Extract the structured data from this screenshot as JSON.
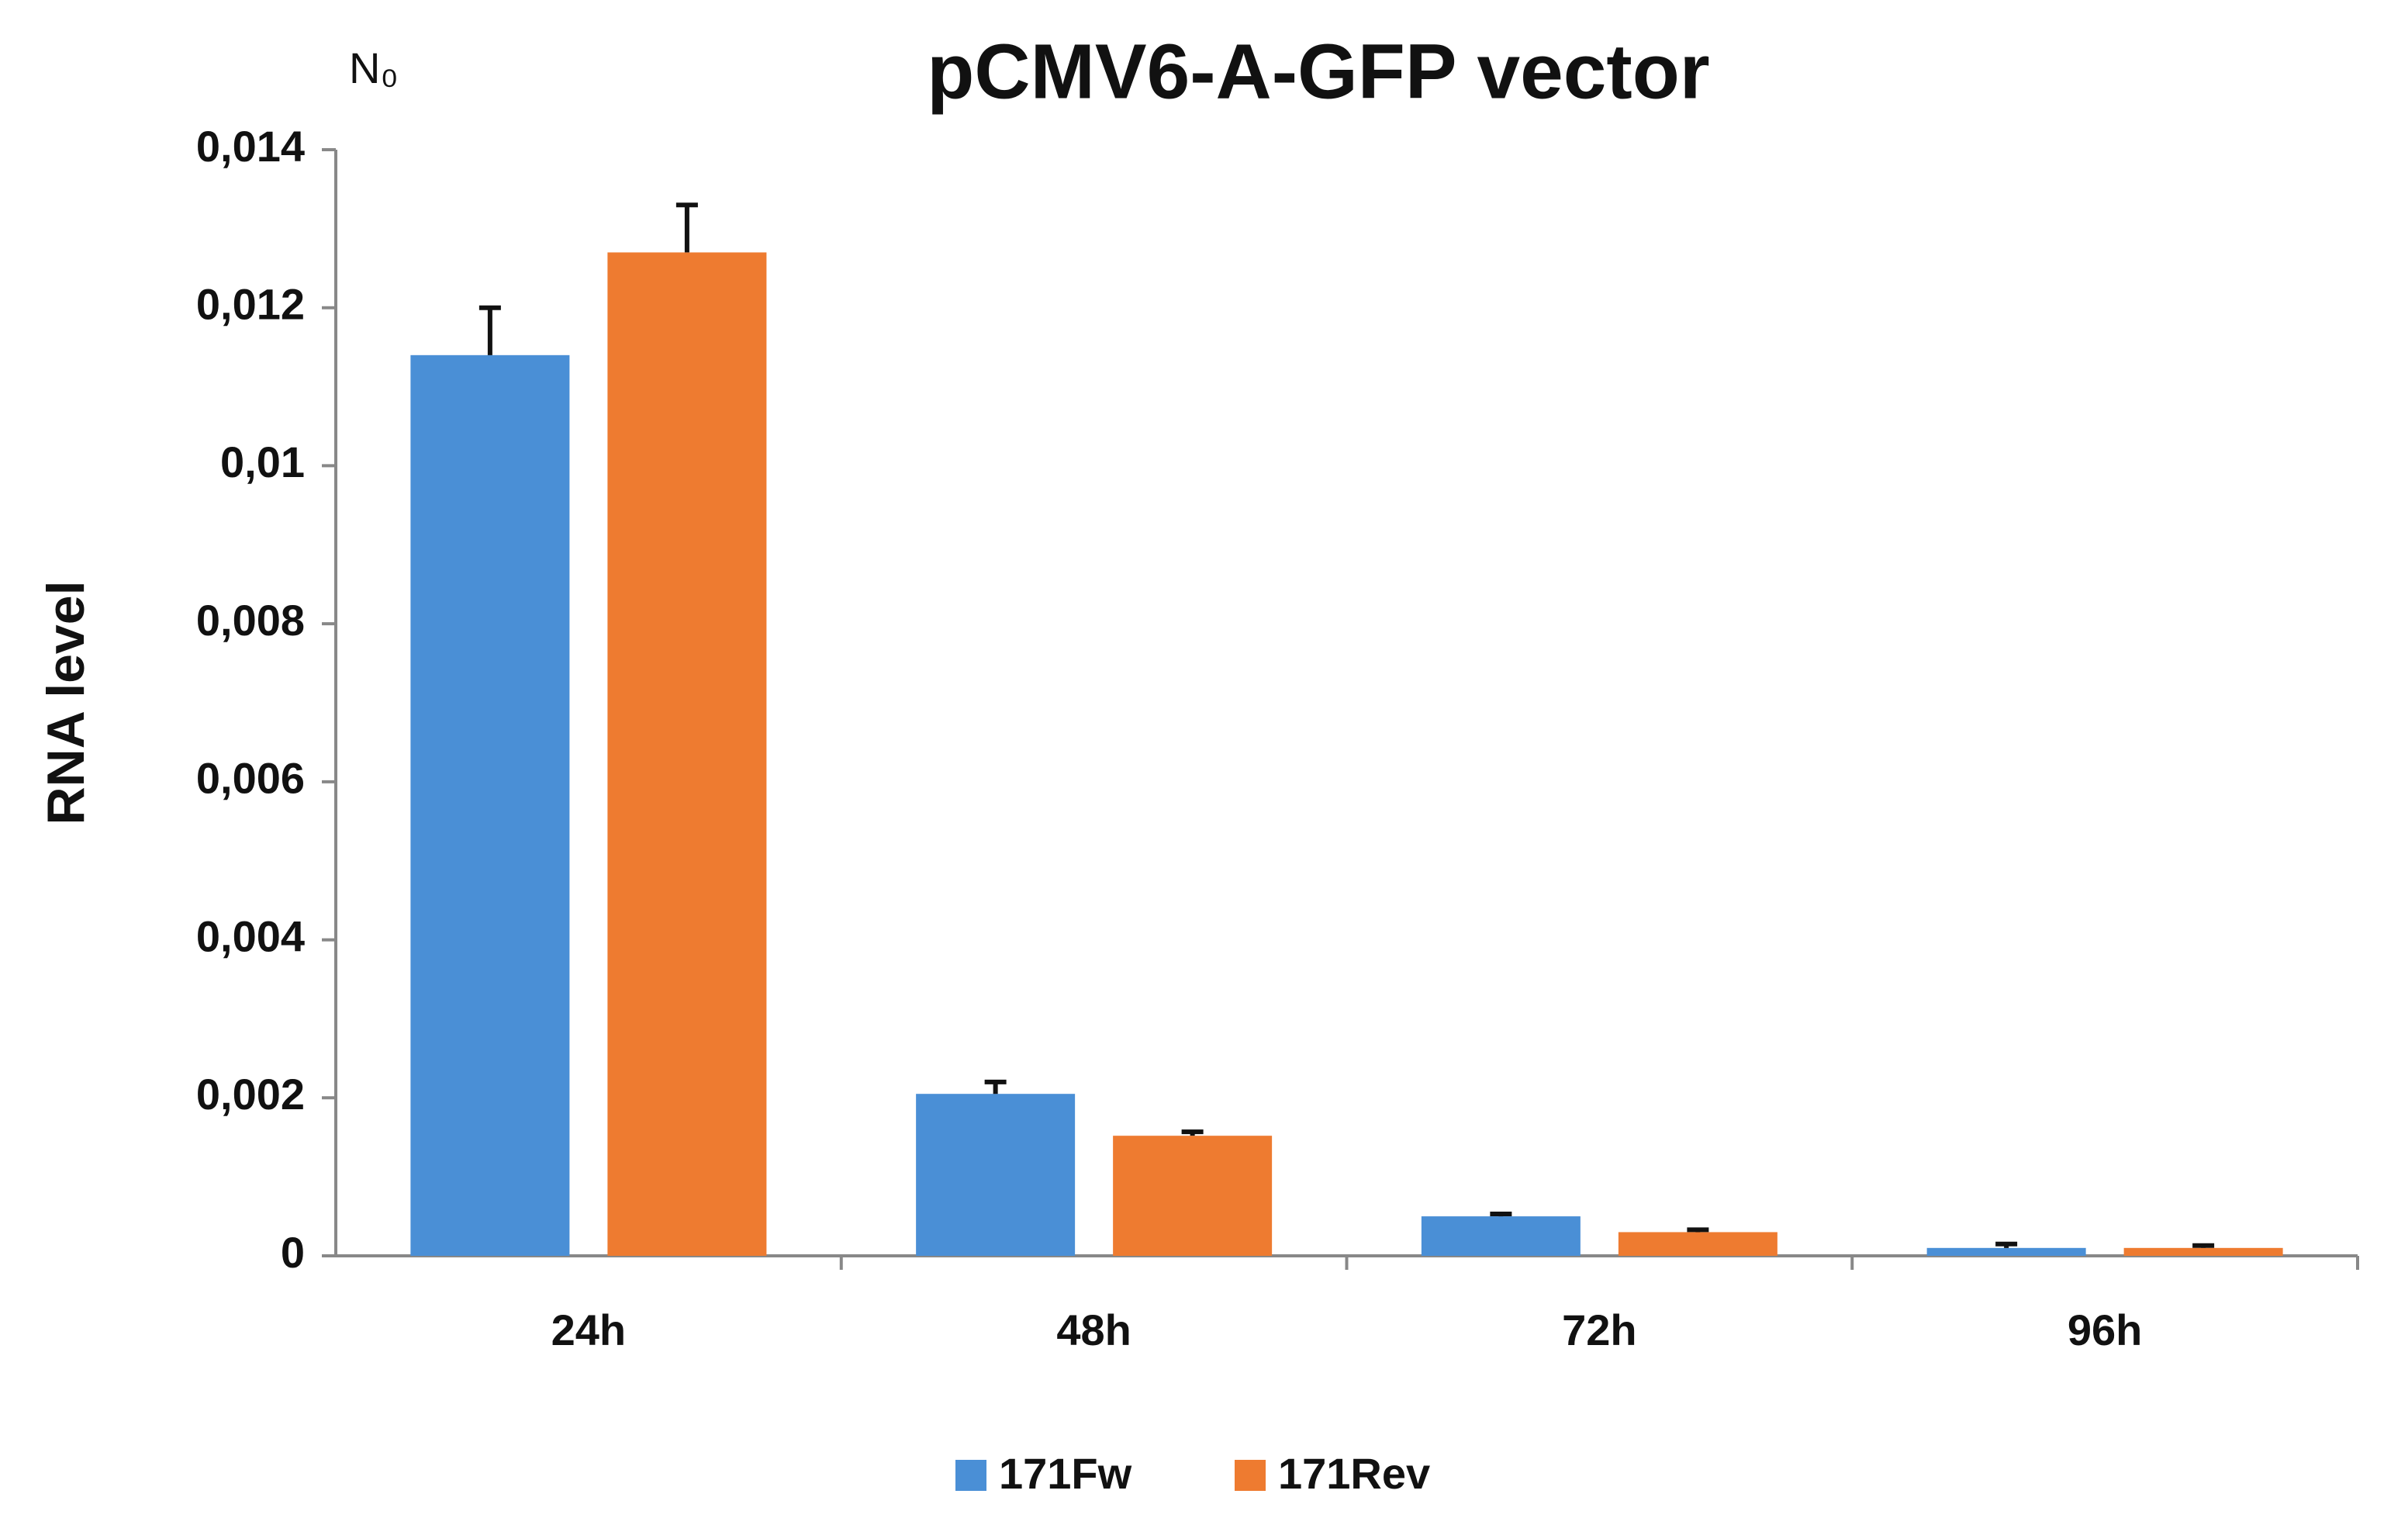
{
  "chart_data": {
    "type": "bar",
    "title": "pCMV6-A-GFP vector",
    "annotation": "N₀",
    "y_label": "RNA level",
    "categories": [
      "24h",
      "48h",
      "72h",
      "96h"
    ],
    "series": [
      {
        "name": "171Fw",
        "color": "#4a8fd6",
        "values": [
          0.0114,
          0.00205,
          0.0005,
          0.0001
        ],
        "errors": [
          0.0006,
          0.00015,
          3e-05,
          5e-05
        ]
      },
      {
        "name": "171Rev",
        "color": "#ee7b30",
        "values": [
          0.0127,
          0.00152,
          0.0003,
          0.0001
        ],
        "errors": [
          0.0006,
          5e-05,
          3e-05,
          3e-05
        ]
      }
    ],
    "ylim": [
      0,
      0.014
    ],
    "yticks": [
      0,
      {
        "value": 0.002,
        "label": "0,002"
      },
      {
        "value": 0.004,
        "label": "0,004"
      },
      {
        "value": 0.006,
        "label": "0,006"
      },
      {
        "value": 0.008,
        "label": "0,008"
      },
      {
        "value": 0.01,
        "label": "0,01"
      },
      {
        "value": 0.012,
        "label": "0,012"
      },
      {
        "value": 0.014,
        "label": "0,014"
      }
    ],
    "grid": false,
    "legend": "bottom"
  }
}
